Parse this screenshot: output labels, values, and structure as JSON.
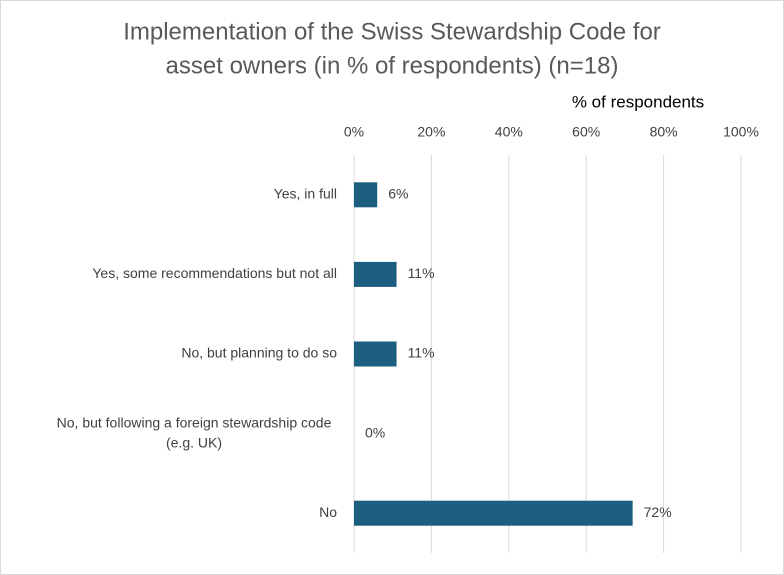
{
  "chart_data": {
    "type": "bar",
    "orientation": "horizontal",
    "title": [
      "Implementation of the Swiss Stewardship Code for",
      "asset owners (in % of respondents) (n=18)"
    ],
    "x_label": "% of respondents",
    "categories": [
      "Yes, in full",
      "Yes, some recommendations but not all",
      "No, but planning to do so",
      "No, but following a foreign stewardship code (e.g. UK)",
      "No"
    ],
    "values": [
      6,
      11,
      11,
      0,
      72
    ],
    "value_labels": [
      "6%",
      "11%",
      "11%",
      "0%",
      "72%"
    ],
    "color": "#1b5e80",
    "xlim": [
      0,
      100
    ],
    "xticks": [
      {
        "value": 0,
        "label": "0%"
      },
      {
        "value": 20,
        "label": "20%"
      },
      {
        "value": 40,
        "label": "40%"
      },
      {
        "value": 60,
        "label": "60%"
      },
      {
        "value": 80,
        "label": "80%"
      },
      {
        "value": 100,
        "label": "100%"
      }
    ],
    "grid": true
  }
}
